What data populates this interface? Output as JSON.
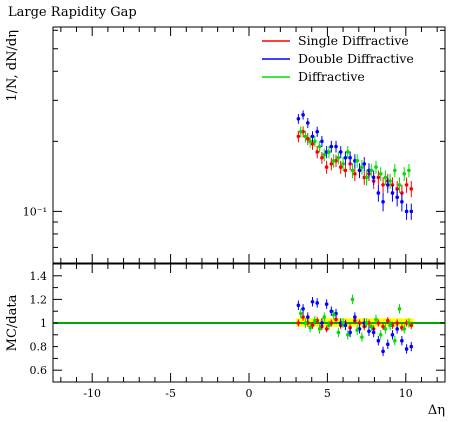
{
  "chart_data": [
    {
      "type": "scatter",
      "title": "Large Rapidity Gap",
      "ylabel": "1/N, dN/dη",
      "yscale": "log",
      "ylim": [
        0.06,
        0.62
      ],
      "xlim": [
        -12.5,
        12.5
      ],
      "yticks": [
        {
          "value": 0.1,
          "label": "10⁻¹"
        }
      ],
      "legend_position": "top-right",
      "series": [
        {
          "name": "Single Diffractive",
          "color": "#ff0000",
          "x": [
            3.15,
            3.45,
            3.75,
            4.05,
            4.35,
            4.65,
            4.95,
            5.25,
            5.55,
            5.85,
            6.15,
            6.45,
            6.75,
            7.05,
            7.35,
            7.65,
            7.95,
            8.25,
            8.55,
            8.85,
            9.15,
            9.45,
            9.75,
            10.05,
            10.35
          ],
          "y": [
            0.21,
            0.22,
            0.205,
            0.195,
            0.18,
            0.17,
            0.155,
            0.16,
            0.165,
            0.155,
            0.15,
            0.16,
            0.145,
            0.15,
            0.14,
            0.145,
            0.135,
            0.14,
            0.13,
            0.135,
            0.13,
            0.125,
            0.12,
            0.13,
            0.125
          ],
          "err": [
            0.012,
            0.012,
            0.012,
            0.011,
            0.011,
            0.01,
            0.01,
            0.01,
            0.01,
            0.01,
            0.01,
            0.01,
            0.01,
            0.01,
            0.01,
            0.01,
            0.01,
            0.01,
            0.01,
            0.01,
            0.01,
            0.01,
            0.01,
            0.01,
            0.01
          ]
        },
        {
          "name": "Double Diffractive",
          "color": "#0000ff",
          "x": [
            3.15,
            3.45,
            3.75,
            4.05,
            4.35,
            4.65,
            4.95,
            5.25,
            5.55,
            5.85,
            6.15,
            6.45,
            6.75,
            7.05,
            7.35,
            7.65,
            7.95,
            8.25,
            8.55,
            8.85,
            9.15,
            9.45,
            9.75,
            10.05,
            10.35
          ],
          "y": [
            0.25,
            0.26,
            0.24,
            0.21,
            0.22,
            0.2,
            0.18,
            0.19,
            0.19,
            0.18,
            0.17,
            0.17,
            0.165,
            0.15,
            0.16,
            0.15,
            0.14,
            0.12,
            0.11,
            0.13,
            0.12,
            0.115,
            0.11,
            0.1,
            0.1
          ],
          "err": [
            0.012,
            0.012,
            0.012,
            0.011,
            0.011,
            0.011,
            0.011,
            0.011,
            0.011,
            0.011,
            0.011,
            0.011,
            0.011,
            0.011,
            0.011,
            0.011,
            0.01,
            0.01,
            0.01,
            0.01,
            0.01,
            0.01,
            0.01,
            0.008,
            0.008
          ]
        },
        {
          "name": "Diffractive",
          "color": "#00dd00",
          "x": [
            3.3,
            3.6,
            3.9,
            4.2,
            4.5,
            4.8,
            5.1,
            5.4,
            5.7,
            6.0,
            6.3,
            6.6,
            6.9,
            7.2,
            7.5,
            7.8,
            8.1,
            8.4,
            8.7,
            9.0,
            9.3,
            9.6,
            9.9,
            10.2
          ],
          "y": [
            0.22,
            0.21,
            0.2,
            0.2,
            0.19,
            0.175,
            0.18,
            0.165,
            0.17,
            0.16,
            0.18,
            0.15,
            0.165,
            0.155,
            0.14,
            0.15,
            0.155,
            0.145,
            0.14,
            0.135,
            0.15,
            0.13,
            0.145,
            0.15
          ],
          "err": [
            0.012,
            0.012,
            0.012,
            0.011,
            0.011,
            0.011,
            0.011,
            0.011,
            0.011,
            0.011,
            0.011,
            0.011,
            0.011,
            0.011,
            0.011,
            0.01,
            0.01,
            0.01,
            0.01,
            0.01,
            0.01,
            0.01,
            0.01,
            0.01
          ]
        }
      ]
    },
    {
      "type": "scatter",
      "ylabel": "MC/data",
      "xlabel": "Δη",
      "ylim": [
        0.5,
        1.5
      ],
      "xlim": [
        -12.5,
        12.5
      ],
      "yticks": [
        {
          "value": 0.6,
          "label": "0.6"
        },
        {
          "value": 0.8,
          "label": "0.8"
        },
        {
          "value": 1.0,
          "label": "1"
        },
        {
          "value": 1.2,
          "label": "1.2"
        },
        {
          "value": 1.4,
          "label": "1.4"
        }
      ],
      "xticks": [
        {
          "value": -10,
          "label": "-10"
        },
        {
          "value": -5,
          "label": "-5"
        },
        {
          "value": 0,
          "label": "0"
        },
        {
          "value": 5,
          "label": "5"
        },
        {
          "value": 10,
          "label": "10"
        }
      ],
      "reference_line": {
        "y": 1.0,
        "color": "#00aa00"
      },
      "uncertainty_band": {
        "x": [
          3.0,
          10.5
        ],
        "low": 0.97,
        "high": 1.04,
        "color": "#ffff00"
      },
      "series": [
        {
          "name": "Single Diffractive",
          "color": "#ff0000",
          "x": [
            3.15,
            3.45,
            3.75,
            4.05,
            4.35,
            4.65,
            4.95,
            5.25,
            5.55,
            5.85,
            6.15,
            6.45,
            6.75,
            7.05,
            7.35,
            7.65,
            7.95,
            8.25,
            8.55,
            8.85,
            9.15,
            9.45,
            9.75,
            10.05,
            10.35
          ],
          "y": [
            1.0,
            1.05,
            1.0,
            0.98,
            1.02,
            0.97,
            0.95,
            1.0,
            1.03,
            0.98,
            1.0,
            0.96,
            1.02,
            1.0,
            0.97,
            1.0,
            0.95,
            1.0,
            0.97,
            1.02,
            0.98,
            1.0,
            0.96,
            1.0,
            0.98
          ],
          "err": [
            0.03,
            0.03,
            0.03,
            0.03,
            0.03,
            0.03,
            0.03,
            0.03,
            0.03,
            0.03,
            0.03,
            0.03,
            0.03,
            0.03,
            0.03,
            0.03,
            0.03,
            0.03,
            0.03,
            0.03,
            0.03,
            0.03,
            0.03,
            0.03,
            0.03
          ]
        },
        {
          "name": "Double Diffractive",
          "color": "#0000ff",
          "x": [
            3.15,
            3.45,
            3.75,
            4.05,
            4.35,
            4.65,
            4.95,
            5.25,
            5.55,
            5.85,
            6.15,
            6.45,
            6.75,
            7.05,
            7.35,
            7.65,
            7.95,
            8.25,
            8.55,
            8.85,
            9.15,
            9.45,
            9.75,
            10.05,
            10.35
          ],
          "y": [
            1.15,
            1.12,
            1.05,
            1.18,
            1.17,
            1.0,
            1.16,
            1.1,
            1.08,
            1.0,
            0.98,
            0.92,
            1.05,
            0.95,
            1.0,
            0.93,
            0.92,
            0.85,
            0.76,
            0.82,
            0.9,
            0.95,
            0.85,
            0.78,
            0.8
          ],
          "err": [
            0.04,
            0.04,
            0.04,
            0.04,
            0.04,
            0.04,
            0.04,
            0.04,
            0.04,
            0.04,
            0.04,
            0.04,
            0.04,
            0.04,
            0.04,
            0.04,
            0.04,
            0.04,
            0.04,
            0.04,
            0.04,
            0.04,
            0.04,
            0.04,
            0.04
          ]
        },
        {
          "name": "Diffractive",
          "color": "#00dd00",
          "x": [
            3.3,
            3.6,
            3.9,
            4.2,
            4.5,
            4.8,
            5.1,
            5.4,
            5.7,
            6.0,
            6.3,
            6.6,
            6.9,
            7.2,
            7.5,
            7.8,
            8.1,
            8.4,
            8.7,
            9.0,
            9.3,
            9.6,
            9.9,
            10.2
          ],
          "y": [
            1.08,
            1.0,
            0.96,
            1.02,
            0.95,
            1.05,
            0.98,
            1.07,
            0.92,
            1.0,
            0.9,
            1.2,
            0.94,
            0.88,
            1.0,
            0.97,
            1.03,
            0.9,
            0.95,
            0.98,
            0.85,
            1.12,
            0.95,
            1.0
          ],
          "err": [
            0.04,
            0.04,
            0.04,
            0.04,
            0.04,
            0.04,
            0.04,
            0.04,
            0.04,
            0.04,
            0.04,
            0.04,
            0.04,
            0.04,
            0.04,
            0.04,
            0.04,
            0.04,
            0.04,
            0.04,
            0.04,
            0.04,
            0.04,
            0.04
          ]
        }
      ]
    }
  ]
}
